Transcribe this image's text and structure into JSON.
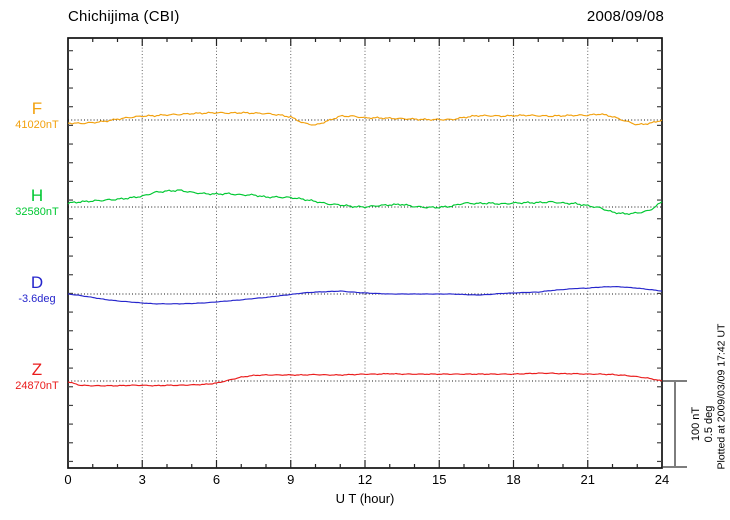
{
  "header": {
    "title": "Chichijima (CBI)",
    "date": "2008/09/08"
  },
  "traces": [
    {
      "label": "F",
      "value": "41020nT"
    },
    {
      "label": "H",
      "value": "32580nT"
    },
    {
      "label": "D",
      "value": "-3.6deg"
    },
    {
      "label": "Z",
      "value": "24870nT"
    }
  ],
  "x_axis": {
    "title": "U T (hour)",
    "tick_hours": [
      0,
      3,
      6,
      9,
      12,
      15,
      18,
      21,
      24
    ],
    "tick_labels": [
      "0",
      "3",
      "6",
      "9",
      "12",
      "15",
      "18",
      "21",
      "24"
    ]
  },
  "scale_bar": {
    "line1": "100 nT",
    "line2": "0.5 deg"
  },
  "footer": {
    "plotted_at": "Plotted at 2009/03/09 17:42 UT"
  },
  "chart_data": {
    "type": "line",
    "title": "Chichijima (CBI) magnetogram 2008/09/08",
    "xlabel": "U T (hour)",
    "x_range_hours": [
      0,
      24
    ],
    "x_step_hours": 0.5,
    "grid": "dotted vertical every 3 hours; dotted horizontal baseline per trace",
    "scale": {
      "nT_per_div": 100,
      "deg_per_div": 0.5
    },
    "series": [
      {
        "name": "F",
        "unit": "nT",
        "baseline": 41020,
        "color": "#f2a10e",
        "offsets": [
          -3.5,
          -4,
          -3,
          -1.5,
          1,
          3,
          4.5,
          5,
          6,
          6.5,
          7.5,
          8,
          8.5,
          8,
          8.5,
          8,
          7.5,
          6,
          3.5,
          -3.5,
          -6,
          -1,
          4.5,
          4.5,
          2.5,
          2.5,
          2,
          1.5,
          1,
          0.5,
          0.5,
          0.5,
          3,
          5,
          5,
          4.5,
          5,
          5.5,
          5,
          4.5,
          5,
          5.5,
          5.5,
          7,
          4,
          -1,
          -5.5,
          -4,
          0
        ]
      },
      {
        "name": "H",
        "unit": "nT",
        "baseline": 32580,
        "color": "#00c832",
        "offsets": [
          4.5,
          6,
          7,
          8,
          9,
          10.5,
          12.5,
          17,
          18.5,
          19.5,
          17,
          15.5,
          15,
          15.5,
          14,
          14,
          11.5,
          11.5,
          11,
          9,
          6.5,
          3.5,
          2.5,
          0.5,
          0,
          1.5,
          2.5,
          3,
          0.5,
          -0.5,
          -0.5,
          1,
          4.5,
          4,
          4.5,
          3.5,
          4.5,
          5,
          5,
          6,
          4.5,
          4,
          1.5,
          -1,
          -6,
          -8,
          -7,
          -4,
          6
        ]
      },
      {
        "name": "D",
        "unit": "deg",
        "baseline": -3.6,
        "color": "#2626cc",
        "offsets": [
          0,
          -0.009,
          -0.02,
          -0.032,
          -0.04,
          -0.046,
          -0.052,
          -0.057,
          -0.057,
          -0.057,
          -0.055,
          -0.052,
          -0.046,
          -0.04,
          -0.034,
          -0.026,
          -0.02,
          -0.011,
          -0.003,
          0.006,
          0.011,
          0.014,
          0.017,
          0.011,
          0.006,
          0.003,
          0,
          0,
          0,
          0,
          0,
          0,
          -0.003,
          -0.006,
          -0.003,
          0.003,
          0.006,
          0.009,
          0.011,
          0.02,
          0.026,
          0.032,
          0.034,
          0.04,
          0.043,
          0.04,
          0.034,
          0.026,
          0.017
        ]
      },
      {
        "name": "Z",
        "unit": "nT",
        "baseline": 24870,
        "color": "#ea1c1c",
        "offsets": [
          -1,
          -5,
          -5.5,
          -5.5,
          -5.5,
          -5,
          -5,
          -5.5,
          -5,
          -5,
          -4.5,
          -4,
          -2.5,
          1,
          4.5,
          6.5,
          7,
          7,
          7,
          7,
          7.5,
          7,
          7,
          7.5,
          8,
          8,
          8.5,
          8,
          8,
          8,
          8,
          8,
          8,
          8,
          8,
          8,
          8,
          8.5,
          9,
          9,
          8.5,
          8.5,
          8,
          8,
          7.5,
          6.5,
          5,
          3,
          0
        ]
      }
    ]
  }
}
